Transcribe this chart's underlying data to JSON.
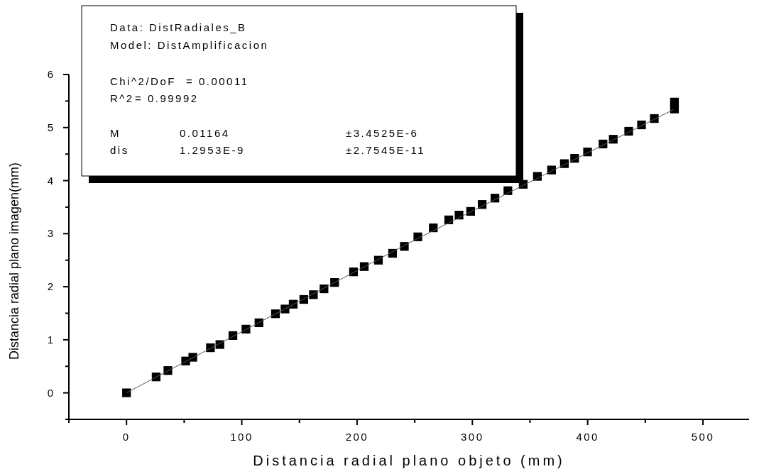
{
  "chart_data": {
    "type": "scatter",
    "xlabel": "Distancia radial plano objeto (mm)",
    "ylabel": "Distancia radial plano imagen(mm)",
    "xlim": [
      -50,
      540
    ],
    "ylim": [
      -0.5,
      6
    ],
    "xticks": [
      {
        "value": -50,
        "label": null
      },
      0,
      {
        "value": 50,
        "label": null
      },
      100,
      {
        "value": 150,
        "label": null
      },
      200,
      {
        "value": 250,
        "label": null
      },
      300,
      {
        "value": 350,
        "label": null
      },
      400,
      {
        "value": 450,
        "label": null
      },
      500
    ],
    "yticks": [
      {
        "value": -0.5,
        "label": null
      },
      0,
      {
        "value": 0.5,
        "label": null
      },
      1,
      {
        "value": 1.5,
        "label": null
      },
      2,
      {
        "value": 2.5,
        "label": null
      },
      3,
      {
        "value": 3.5,
        "label": null
      },
      4,
      {
        "value": 4.5,
        "label": null
      },
      5,
      {
        "value": 5.5,
        "label": null
      },
      6
    ],
    "grid": false,
    "series": [
      {
        "marker": "square",
        "color": "#000000",
        "x": [
          0,
          25.7,
          35.9,
          51.3,
          57.5,
          72.8,
          81,
          92.3,
          103.6,
          114.9,
          129.2,
          137.5,
          144.6,
          153.8,
          162.1,
          171.3,
          180.5,
          196.9,
          206.2,
          218.5,
          230.8,
          241,
          252.7,
          266.1,
          279.5,
          288.4,
          298.5,
          308.5,
          319.6,
          330.8,
          344.1,
          356.4,
          368.7,
          379.8,
          388.7,
          399.9,
          413.3,
          422.2,
          435.6,
          446.7,
          457.8,
          475.3,
          475.3
        ],
        "values": [
          0,
          0.3,
          0.42,
          0.6,
          0.67,
          0.85,
          0.91,
          1.08,
          1.2,
          1.32,
          1.49,
          1.58,
          1.67,
          1.76,
          1.85,
          1.96,
          2.08,
          2.28,
          2.38,
          2.5,
          2.63,
          2.76,
          2.94,
          3.11,
          3.26,
          3.35,
          3.42,
          3.55,
          3.67,
          3.81,
          3.93,
          4.08,
          4.2,
          4.32,
          4.42,
          4.54,
          4.69,
          4.78,
          4.93,
          5.05,
          5.17,
          5.35,
          5.48
        ]
      },
      {
        "type": "line",
        "marker": "none",
        "color": "#555555",
        "x": [
          0,
          250,
          474.6
        ],
        "values": [
          0,
          2.88,
          5.34
        ]
      }
    ],
    "annotations": [
      "Data: DistRadiales_B",
      "Model: DistAmplificacion",
      "Chi^2/DoF",
      "= 0.00011",
      "R^2",
      "= 0.99992",
      "M",
      "0.01164",
      "±3.4525E-6",
      "dis",
      "1.2953E-9",
      "±2.7545E-11"
    ]
  }
}
